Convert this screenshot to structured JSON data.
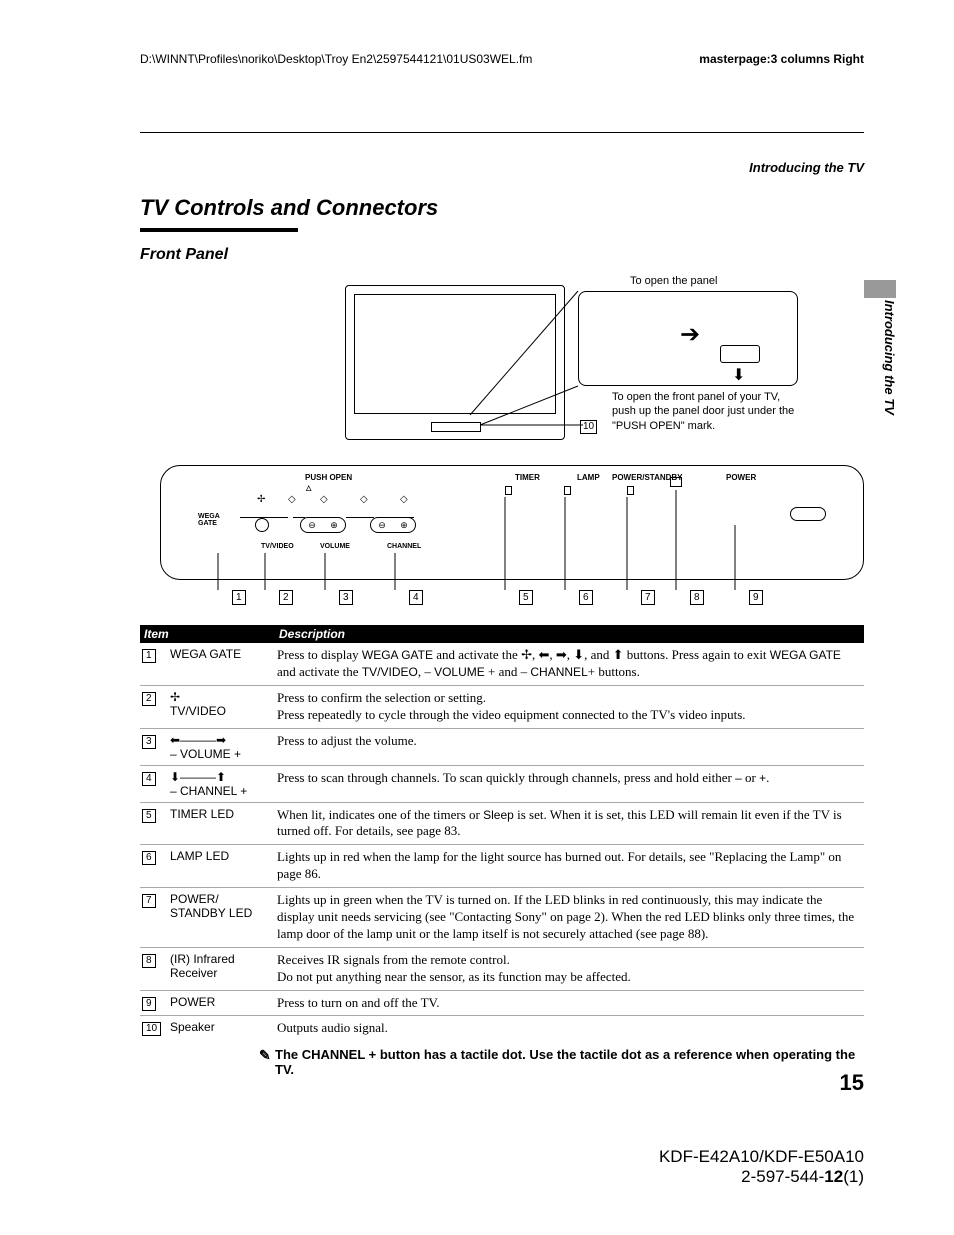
{
  "header": {
    "path": "D:\\WINNT\\Profiles\\noriko\\Desktop\\Troy En2\\2597544121\\01US03WEL.fm",
    "masterpage": "masterpage:3 columns Right"
  },
  "section_top": "Introducing the TV",
  "vertical_tab": "Introducing the TV",
  "title": "TV Controls and Connectors",
  "subtitle": "Front Panel",
  "diagram": {
    "open_caption": "To open the panel",
    "zoom_caption": "To open the front panel of your TV, push up the panel door just under the \"PUSH OPEN\" mark.",
    "leader_10": "10",
    "panel": {
      "push_open": "PUSH OPEN",
      "timer": "TIMER",
      "lamp": "LAMP",
      "power_standby": "POWER/STANDBY",
      "power": "POWER",
      "wega_gate": "WEGA GATE",
      "tv_video": "TV/VIDEO",
      "volume": "VOLUME",
      "channel": "CHANNEL"
    },
    "callouts": [
      "1",
      "2",
      "3",
      "4",
      "5",
      "6",
      "7",
      "8",
      "9"
    ]
  },
  "table": {
    "header_item": "Item",
    "header_desc": "Description",
    "rows": [
      {
        "num": "1",
        "label": "WEGA GATE",
        "desc_html": "Press to display <span class='sans-inline'>WEGA GATE</span> and activate the ✢, ⬅, ➡, ⬇, and ⬆ buttons. Press again to exit <span class='sans-inline'>WEGA GATE</span> and activate the <span class='sans-inline'>TV/VIDEO</span>, – <span class='sans-inline'>VOLUME</span> + and – <span class='sans-inline'>CHANNEL</span>+ buttons."
      },
      {
        "num": "2",
        "label": "✢<br>TV/VIDEO",
        "desc_html": "Press to confirm the selection or setting.<br>Press repeatedly to cycle through the video equipment connected to the TV's video inputs."
      },
      {
        "num": "3",
        "label": "⬅———➡<br>– VOLUME +",
        "desc_html": "Press to adjust the volume."
      },
      {
        "num": "4",
        "label": "⬇———⬆<br>– CHANNEL +",
        "desc_html": "Press to scan through channels. To scan quickly through channels, press and hold either <span class='sans-inline'>–</span> or <span class='sans-inline'>+</span>."
      },
      {
        "num": "5",
        "label": "TIMER LED",
        "desc_html": "When lit, indicates one of the timers or <span class='sans-inline'>Sleep</span> is set. When it is set, this LED will remain lit even if the TV is turned off. For details, see page 83."
      },
      {
        "num": "6",
        "label": "LAMP LED",
        "desc_html": "Lights up in red when the lamp for the light source has burned out. For details, see \"Replacing the Lamp\" on page 86."
      },
      {
        "num": "7",
        "label": "POWER/<br>STANDBY LED",
        "desc_html": "Lights up in green when the TV is turned on. If the LED blinks in red continuously, this may indicate the display unit needs servicing (see \"Contacting Sony\" on page 2). When the red LED blinks only three times, the lamp door of the lamp unit or the lamp itself is not securely attached (see page 88)."
      },
      {
        "num": "8",
        "label": "(IR) Infrared Receiver",
        "desc_html": "Receives IR signals from the remote control.<br>Do not put anything near the sensor, as its function may be affected."
      },
      {
        "num": "9",
        "label": "POWER",
        "desc_html": "Press to turn on and off the TV."
      },
      {
        "num": "10",
        "label": "Speaker",
        "desc_html": "Outputs audio signal."
      }
    ],
    "note": "The CHANNEL + button has a tactile dot. Use the tactile dot as a reference when operating the TV."
  },
  "page_num": "15",
  "footer": {
    "model": "KDF-E42A10/KDF-E50A10",
    "doc_num_pre": "2-597-544-",
    "doc_num_bold": "12",
    "doc_num_post": "(1)"
  }
}
